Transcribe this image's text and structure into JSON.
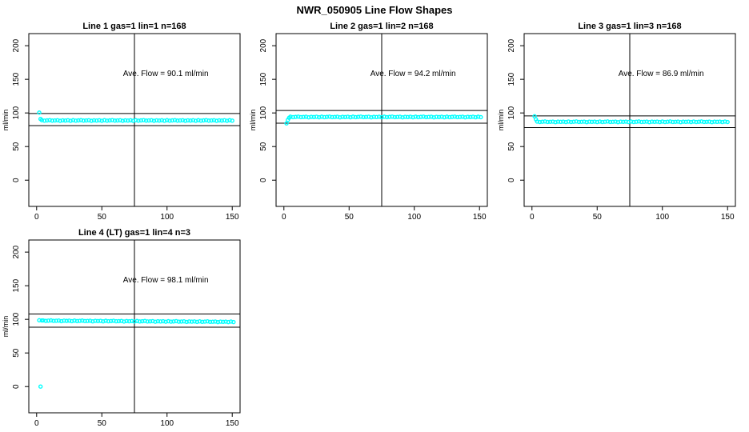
{
  "figure": {
    "title": "NWR_050905  Line Flow Shapes",
    "background": "#ffffff",
    "axis_color": "#000000",
    "point_color": "#00ffff",
    "point_radius": 2,
    "point_stroke_width": 1.4
  },
  "chart_data": [
    {
      "type": "scatter",
      "title": "Line 1 gas=1 lin=1 n=168",
      "annotation": "Ave. Flow =  90.1  ml/min",
      "avg_flow": 90.1,
      "n": 168,
      "ylabel": "ml/min",
      "xlim": [
        -6,
        156
      ],
      "ylim": [
        -39,
        218
      ],
      "x_ticks": [
        0,
        50,
        100,
        150
      ],
      "y_ticks": [
        0,
        50,
        100,
        150,
        200
      ],
      "crosshair_x": 75,
      "ref_lines": [
        99.1,
        81.1
      ],
      "annotation_pos": [
        99,
        155
      ],
      "grid": {
        "row": 0,
        "col": 0
      },
      "transient_points": [
        [
          2,
          100.5
        ],
        [
          3,
          91.0
        ]
      ],
      "band": {
        "x_from": 4,
        "x_to": 150,
        "x_step": 2,
        "y_base": 88.8,
        "y_slope": 0,
        "jitter": [
          0.4,
          -0.3,
          0.1,
          0.5,
          -0.2,
          0,
          0.3,
          -0.5,
          0.2,
          -0.1,
          0.3,
          -0.4
        ]
      }
    },
    {
      "type": "scatter",
      "title": "Line 2 gas=1 lin=2 n=168",
      "annotation": "Ave. Flow =  94.2  ml/min",
      "avg_flow": 94.2,
      "n": 168,
      "ylabel": "ml/min",
      "xlim": [
        -6,
        156
      ],
      "ylim": [
        -39,
        218
      ],
      "x_ticks": [
        0,
        50,
        100,
        150
      ],
      "y_ticks": [
        0,
        50,
        100,
        150,
        200
      ],
      "crosshair_x": 75,
      "ref_lines": [
        103.6,
        84.8
      ],
      "annotation_pos": [
        99,
        155
      ],
      "grid": {
        "row": 0,
        "col": 1
      },
      "transient_points": [
        [
          2,
          84.5
        ],
        [
          3,
          89.5
        ],
        [
          4,
          92.8
        ]
      ],
      "band": {
        "x_from": 5,
        "x_to": 151,
        "x_step": 2,
        "y_base": 94.0,
        "y_slope": 0,
        "jitter": [
          0.4,
          -0.3,
          0.1,
          0.5,
          -0.2,
          0,
          0.3,
          -0.5,
          0.2,
          -0.1,
          0.3,
          -0.4
        ]
      }
    },
    {
      "type": "scatter",
      "title": "Line 3 gas=1 lin=3 n=168",
      "annotation": "Ave. Flow =  86.9  ml/min",
      "avg_flow": 86.9,
      "n": 168,
      "ylabel": "ml/min",
      "xlim": [
        -6,
        156
      ],
      "ylim": [
        -39,
        218
      ],
      "x_ticks": [
        0,
        50,
        100,
        150
      ],
      "y_ticks": [
        0,
        50,
        100,
        150,
        200
      ],
      "crosshair_x": 75,
      "ref_lines": [
        95.6,
        78.2
      ],
      "annotation_pos": [
        99,
        155
      ],
      "grid": {
        "row": 0,
        "col": 2
      },
      "transient_points": [
        [
          2,
          95.0
        ],
        [
          3,
          90.5
        ]
      ],
      "band": {
        "x_from": 4,
        "x_to": 150,
        "x_step": 2,
        "y_base": 86.8,
        "y_slope": 0,
        "jitter": [
          0.4,
          -0.3,
          0.1,
          0.5,
          -0.2,
          0,
          0.3,
          -0.5,
          0.2,
          -0.1,
          0.3,
          -0.4
        ]
      }
    },
    {
      "type": "scatter",
      "title": "Line 4 (LT) gas=1 lin=4 n=3",
      "annotation": "Ave. Flow =  98.1  ml/min",
      "avg_flow": 98.1,
      "n": 3,
      "ylabel": "ml/min",
      "xlim": [
        -6,
        156
      ],
      "ylim": [
        -39,
        218
      ],
      "x_ticks": [
        0,
        50,
        100,
        150
      ],
      "y_ticks": [
        0,
        50,
        100,
        150,
        200
      ],
      "crosshair_x": 75,
      "ref_lines": [
        107.9,
        88.3
      ],
      "annotation_pos": [
        99,
        155
      ],
      "grid": {
        "row": 1,
        "col": 0
      },
      "transient_points": [
        [
          2,
          98.6
        ],
        [
          3,
          0.0
        ],
        [
          4,
          98.4
        ]
      ],
      "band": {
        "x_from": 5,
        "x_to": 151,
        "x_step": 2,
        "y_base": 98.0,
        "y_slope": -0.012,
        "jitter": [
          0.4,
          -0.3,
          0.1,
          0.5,
          -0.2,
          0,
          0.3,
          -0.5,
          0.2,
          -0.1,
          0.3,
          -0.4
        ]
      }
    }
  ]
}
